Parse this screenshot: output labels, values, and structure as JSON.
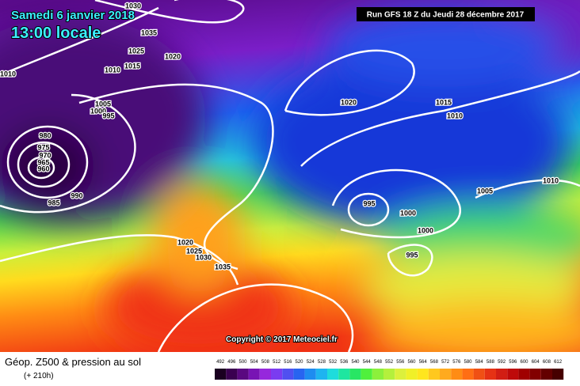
{
  "header": {
    "date": "Samedi 6 janvier 2018",
    "time": "13:00 locale",
    "run": "Run GFS 18 Z du Jeudi 28 décembre 2017"
  },
  "copyright": "Copyright © 2017 Meteociel.fr",
  "legend": {
    "title": "Géop. Z500 & pression au sol",
    "lead": "(+ 210h)",
    "scale": [
      492,
      496,
      500,
      504,
      508,
      512,
      516,
      520,
      524,
      528,
      532,
      536,
      540,
      544,
      548,
      552,
      556,
      560,
      564,
      568,
      572,
      576,
      580,
      584,
      588,
      592,
      596,
      600,
      604,
      608,
      612
    ]
  },
  "isobar_labels": [
    1030,
    1035,
    1025,
    1020,
    1010,
    1015,
    1010,
    1005,
    1000,
    995,
    980,
    975,
    970,
    965,
    960,
    990,
    985,
    1020,
    1015,
    1010,
    1005,
    1010,
    995,
    1000,
    1000,
    995,
    1020,
    1025,
    1030,
    1035
  ]
}
